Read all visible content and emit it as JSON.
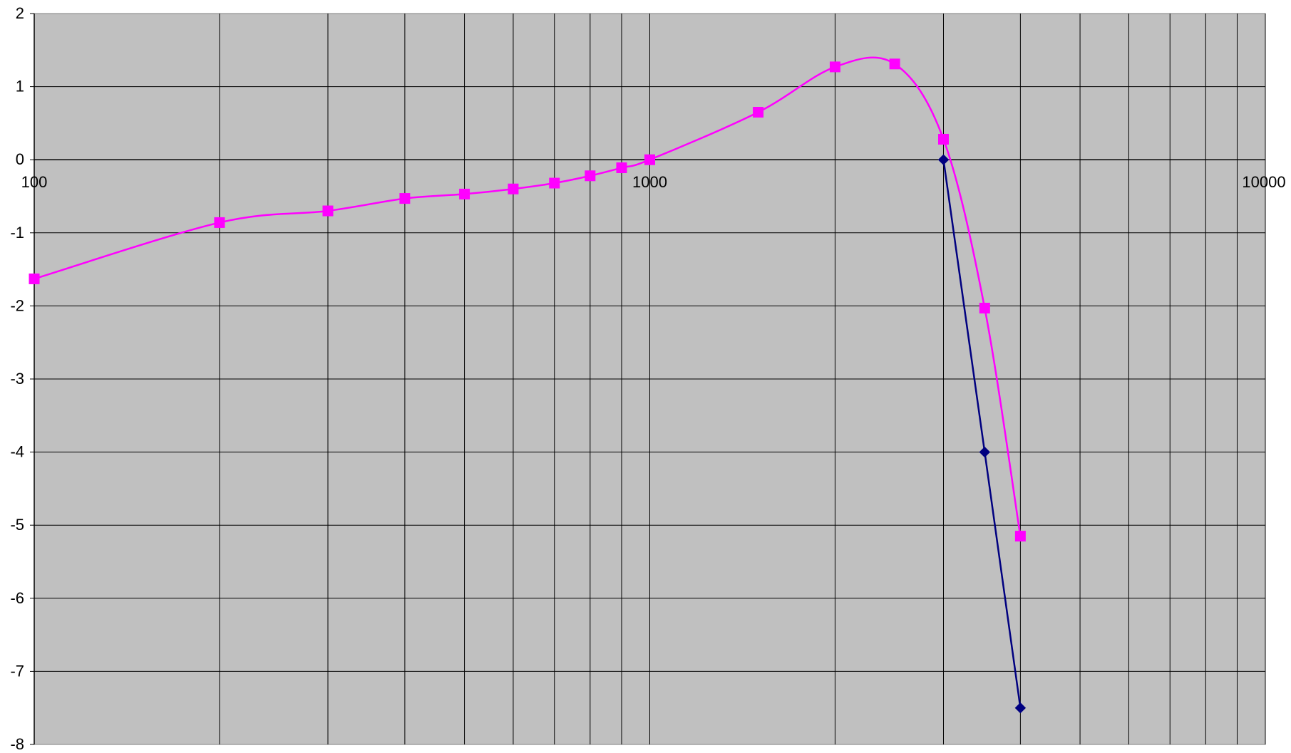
{
  "chart_data": {
    "type": "line",
    "title": "",
    "xlabel": "",
    "ylabel": "",
    "x_scale": "log",
    "xlim": [
      100,
      10000
    ],
    "ylim": [
      -8,
      2
    ],
    "grid": true,
    "legend": "none",
    "x_tick_labels": [
      "100",
      "1000",
      "10000"
    ],
    "y_tick_labels": [
      "2",
      "1",
      "0",
      "-1",
      "-2",
      "-3",
      "-4",
      "-5",
      "-6",
      "-7",
      "-8"
    ],
    "y_ticks": [
      2,
      1,
      0,
      -1,
      -2,
      -3,
      -4,
      -5,
      -6,
      -7,
      -8
    ],
    "x_major_ticks": [
      100,
      1000,
      10000
    ],
    "x_minor_gridlines": [
      200,
      300,
      400,
      500,
      600,
      700,
      800,
      900,
      2000,
      3000,
      4000,
      5000,
      6000,
      7000,
      8000,
      9000
    ],
    "series": [
      {
        "color": "#ff00ff",
        "marker": "square",
        "smooth": true,
        "points": [
          [
            100,
            -1.63
          ],
          [
            200,
            -0.86
          ],
          [
            300,
            -0.7
          ],
          [
            400,
            -0.53
          ],
          [
            500,
            -0.47
          ],
          [
            600,
            -0.4
          ],
          [
            700,
            -0.32
          ],
          [
            800,
            -0.22
          ],
          [
            900,
            -0.11
          ],
          [
            1000,
            0.0
          ],
          [
            1500,
            0.65
          ],
          [
            2000,
            1.27
          ],
          [
            2500,
            1.31
          ],
          [
            3000,
            0.28
          ],
          [
            3500,
            -2.03
          ],
          [
            4000,
            -5.15
          ]
        ]
      },
      {
        "color": "#000080",
        "marker": "diamond",
        "smooth": false,
        "points": [
          [
            3000,
            0.0
          ],
          [
            3500,
            -4.0
          ],
          [
            4000,
            -7.5
          ]
        ]
      }
    ]
  },
  "colors": {
    "plot_background": "#c0c0c0",
    "grid": "#000000",
    "page_background": "#ffffff"
  }
}
